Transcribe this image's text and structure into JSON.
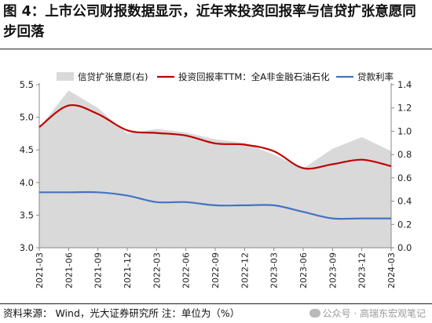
{
  "title": "图 4：上市公司财报数据显示，近年来投资回报率与信贷扩张意愿同步回落",
  "footer": {
    "source": "资料来源：  Wind，光大证券研究所    注：单位为（%）",
    "watermark": "公众号 · 高瑞东宏观笔记"
  },
  "colors": {
    "area": "#d9d9d9",
    "roi": "#c00000",
    "rate": "#4472c4"
  },
  "chart_data": {
    "type": "line",
    "x": [
      "2021-03",
      "2021-06",
      "2021-09",
      "2021-12",
      "2022-03",
      "2022-06",
      "2022-09",
      "2022-12",
      "2023-03",
      "2023-06",
      "2023-09",
      "2023-12",
      "2024-03"
    ],
    "y_left": {
      "ticks": [
        "3.0",
        "3.5",
        "4.0",
        "4.5",
        "5.0",
        "5.5"
      ],
      "range": [
        3.0,
        5.5
      ]
    },
    "y_right": {
      "ticks": [
        "0.0",
        "0.2",
        "0.4",
        "0.6",
        "0.8",
        "1.0",
        "1.2",
        "1.4"
      ],
      "range": [
        0.0,
        1.4
      ]
    },
    "series": [
      {
        "name": "信贷扩张意愿(右)",
        "kind": "area",
        "axis": "right",
        "values": [
          1.03,
          1.35,
          1.2,
          0.98,
          1.02,
          0.99,
          0.93,
          0.9,
          0.8,
          0.68,
          0.85,
          0.95,
          0.83
        ]
      },
      {
        "name": "投资回报率TTM：全A非金融石油石化",
        "kind": "line",
        "axis": "left",
        "values": [
          4.85,
          5.18,
          5.05,
          4.8,
          4.76,
          4.72,
          4.6,
          4.58,
          4.48,
          4.22,
          4.28,
          4.35,
          4.25
        ]
      },
      {
        "name": "贷款利率",
        "kind": "line",
        "axis": "left",
        "values": [
          3.85,
          3.85,
          3.85,
          3.8,
          3.7,
          3.7,
          3.65,
          3.65,
          3.65,
          3.55,
          3.45,
          3.45,
          3.45
        ]
      }
    ],
    "legend_position": "top",
    "grid": false
  }
}
